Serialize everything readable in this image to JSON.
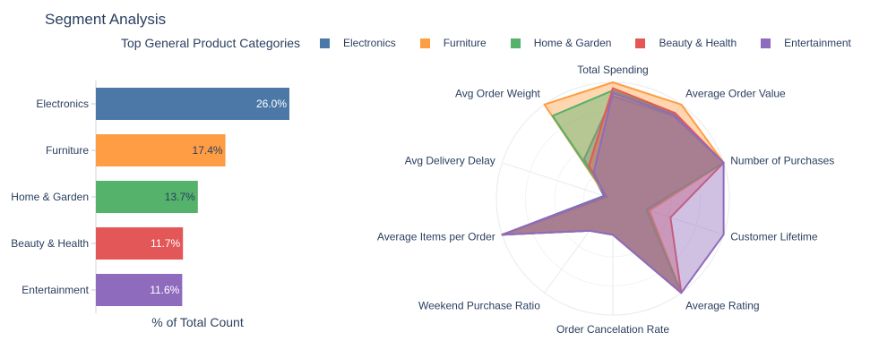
{
  "page": {
    "title": "Segment Analysis",
    "subtitle": "Top General Product Categories"
  },
  "colors": {
    "Electronics": "#4c78a8",
    "Furniture": "#fe9d43",
    "Home & Garden": "#54b26b",
    "Beauty & Health": "#e45759",
    "Entertainment": "#8e6bbd"
  },
  "chart_data": [
    {
      "type": "bar",
      "orientation": "horizontal",
      "categories": [
        "Electronics",
        "Furniture",
        "Home & Garden",
        "Beauty & Health",
        "Entertainment"
      ],
      "values": [
        26.0,
        17.4,
        13.7,
        11.7,
        11.6
      ],
      "value_labels": [
        "26.0%",
        "17.4%",
        "13.7%",
        "11.7%",
        "11.6%"
      ],
      "xlabel": "% of Total Count",
      "xlim": [
        0,
        26.0
      ],
      "grid": false
    },
    {
      "type": "radar",
      "axes": [
        "Total Spending",
        "Average Order Value",
        "Number of Purchases",
        "Customer Lifetime",
        "Average Rating",
        "Order Cancelation Rate",
        "Weekend Purchase Ratio",
        "Average Items per Order",
        "Avg Delivery Delay",
        "Avg Order Weight"
      ],
      "range": [
        0,
        1
      ],
      "legend_placement": "top",
      "series": [
        {
          "name": "Electronics",
          "values": [
            0.88,
            0.88,
            1.0,
            0.31,
            1.0,
            0.31,
            0.34,
            1.0,
            0.08,
            0.42
          ]
        },
        {
          "name": "Furniture",
          "values": [
            1.0,
            1.0,
            1.0,
            0.33,
            1.0,
            0.31,
            0.34,
            1.0,
            0.06,
            1.0
          ]
        },
        {
          "name": "Home & Garden",
          "values": [
            0.93,
            0.9,
            1.0,
            0.3,
            1.0,
            0.31,
            0.34,
            1.0,
            0.05,
            0.88
          ]
        },
        {
          "name": "Beauty & Health",
          "values": [
            0.95,
            0.91,
            1.0,
            0.52,
            1.0,
            0.31,
            0.34,
            1.0,
            0.06,
            0.35
          ]
        },
        {
          "name": "Entertainment",
          "values": [
            0.91,
            0.89,
            1.0,
            1.0,
            1.0,
            0.31,
            0.34,
            1.0,
            0.07,
            0.28
          ]
        }
      ]
    }
  ]
}
